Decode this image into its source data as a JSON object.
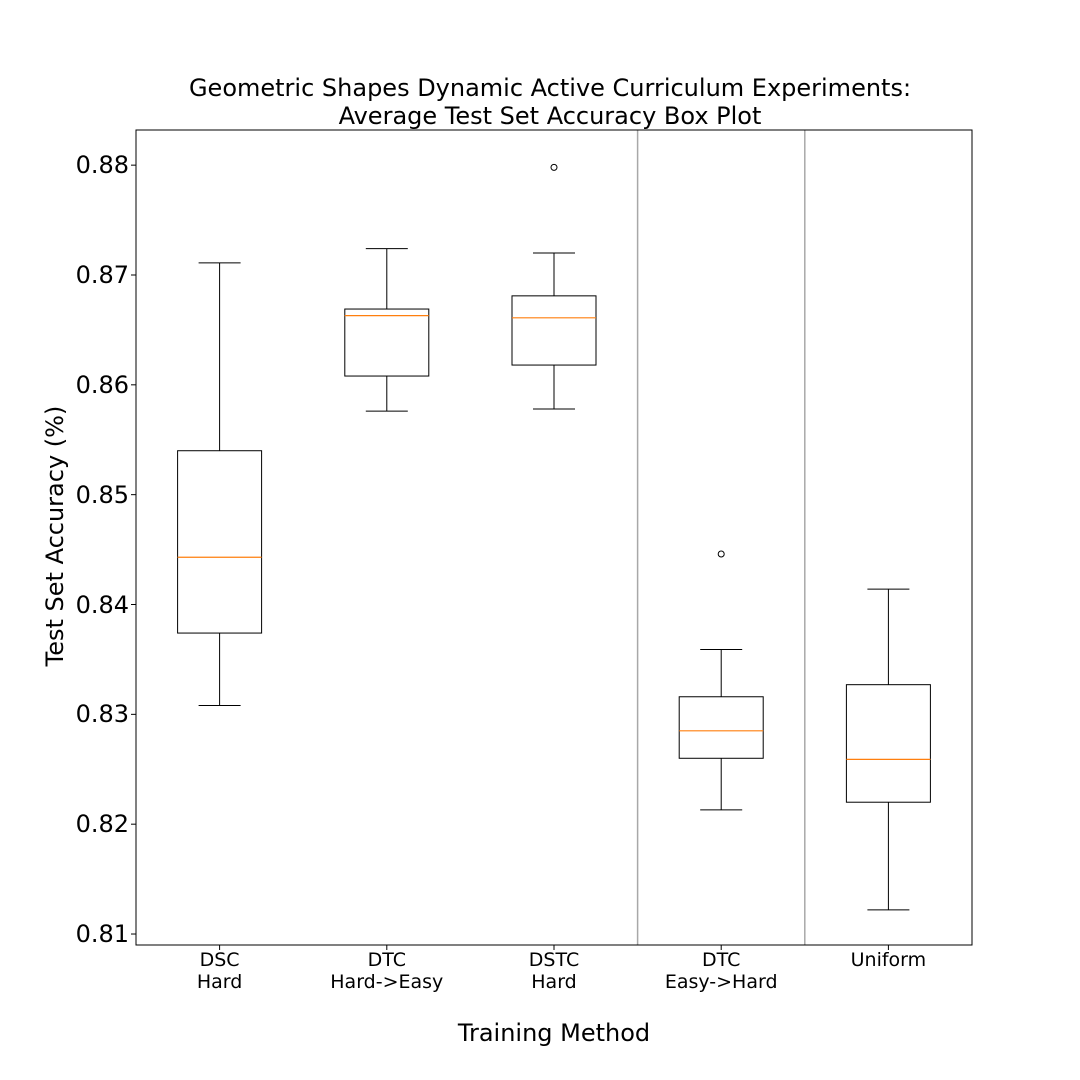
{
  "chart_data": {
    "type": "box",
    "title_line1": "Geometric Shapes Dynamic Active Curriculum Experiments:",
    "title_line2": "Average Test Set Accuracy Box Plot",
    "xlabel": "Training Method",
    "ylabel": "Test Set Accuracy (%)",
    "ylim": [
      0.809,
      0.8832
    ],
    "yticks": [
      "0.81",
      "0.82",
      "0.83",
      "0.84",
      "0.85",
      "0.86",
      "0.87",
      "0.88"
    ],
    "grid": false,
    "separators_after_category": [
      3,
      4
    ],
    "categories": [
      {
        "line1": "DSC",
        "line2": "Hard"
      },
      {
        "line1": "DTC",
        "line2": "Hard->Easy"
      },
      {
        "line1": "DSTC",
        "line2": "Hard"
      },
      {
        "line1": "DTC",
        "line2": "Easy->Hard"
      },
      {
        "line1": "Uniform",
        "line2": ""
      }
    ],
    "boxes": [
      {
        "whisker_low": 0.8308,
        "q1": 0.8374,
        "median": 0.8443,
        "q3": 0.854,
        "whisker_high": 0.8711,
        "outliers": []
      },
      {
        "whisker_low": 0.8576,
        "q1": 0.8608,
        "median": 0.8663,
        "q3": 0.8669,
        "whisker_high": 0.8724,
        "outliers": []
      },
      {
        "whisker_low": 0.8578,
        "q1": 0.8618,
        "median": 0.8661,
        "q3": 0.8681,
        "whisker_high": 0.872,
        "outliers": [
          0.8798
        ]
      },
      {
        "whisker_low": 0.8213,
        "q1": 0.826,
        "median": 0.8285,
        "q3": 0.8316,
        "whisker_high": 0.8359,
        "outliers": [
          0.8446
        ]
      },
      {
        "whisker_low": 0.8122,
        "q1": 0.822,
        "median": 0.8259,
        "q3": 0.8327,
        "whisker_high": 0.8414,
        "outliers": []
      }
    ],
    "colors": {
      "box": "#000000",
      "median": "#ff7f0e",
      "separator": "#a8a8a8"
    }
  }
}
